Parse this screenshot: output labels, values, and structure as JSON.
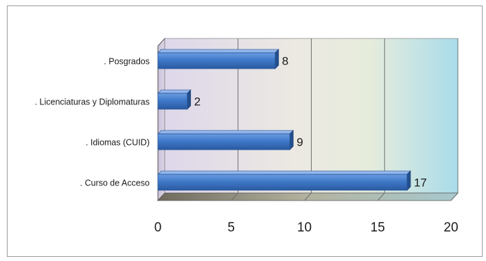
{
  "chart_data": {
    "type": "bar",
    "orientation": "horizontal",
    "categories": [
      ". Posgrados",
      ". Licenciaturas y Diplomaturas",
      ". Idiomas (CUID)",
      ". Curso de Acceso"
    ],
    "values": [
      8,
      2,
      9,
      17
    ],
    "value_labels": [
      "8",
      "2",
      "9",
      "17"
    ],
    "xlim": [
      0,
      20
    ],
    "x_ticks": [
      "0",
      "5",
      "10",
      "15",
      "20"
    ],
    "title": "",
    "xlabel": "",
    "ylabel": "",
    "grid": true,
    "legend": "none",
    "bar_color": "#3f78c8",
    "plot_background": "gradient violet-beige-cyan"
  }
}
